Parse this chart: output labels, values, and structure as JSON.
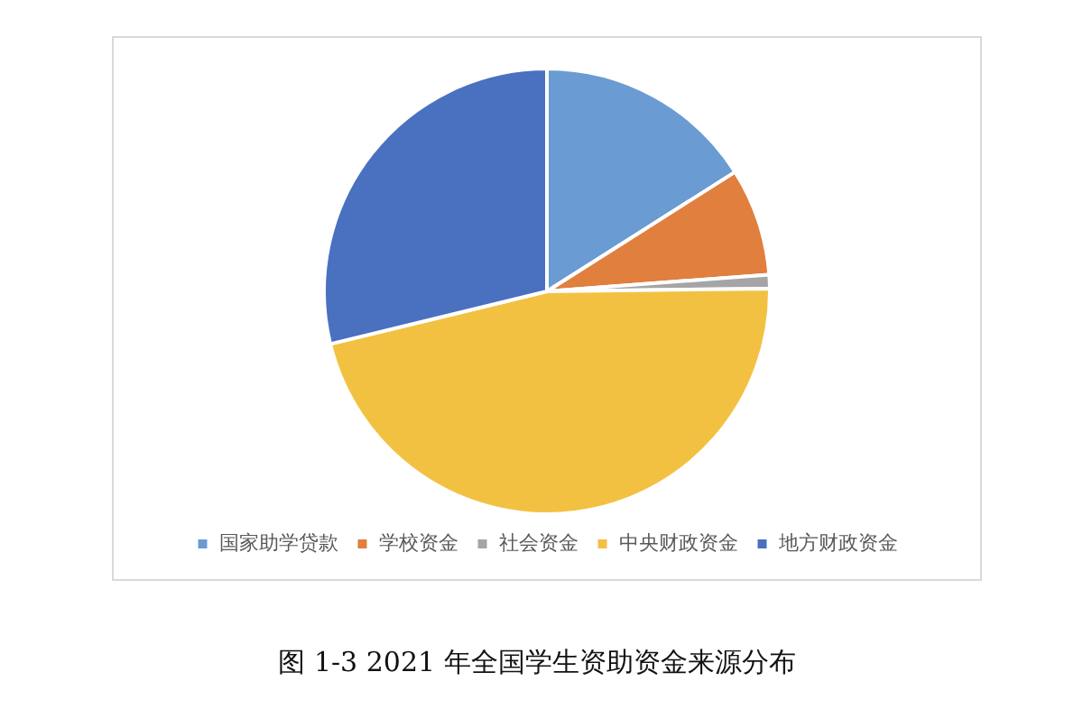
{
  "chart_data": {
    "type": "pie",
    "title": "图 1-3  2021 年全国学生资助资金来源分布",
    "categories": [
      "国家助学贷款",
      "学校资金",
      "社会资金",
      "中央财政资金",
      "地方财政资金"
    ],
    "values": [
      16,
      7.8,
      1,
      46.4,
      28.8
    ],
    "colors": [
      "#6a9bd2",
      "#e07f3e",
      "#a5a5a5",
      "#f3c142",
      "#4a70c0"
    ],
    "legend": "bottom"
  }
}
